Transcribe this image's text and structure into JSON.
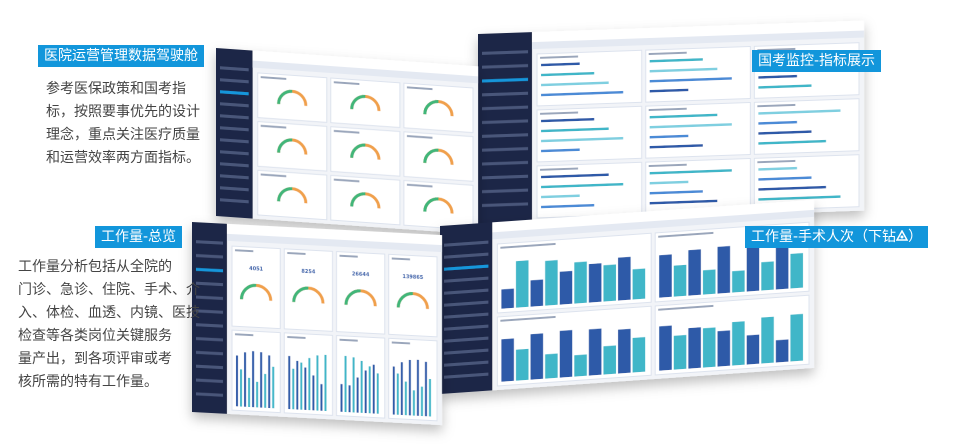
{
  "callouts": [
    {
      "text": "医院运营管理数据驾驶舱"
    },
    {
      "text": "工作量-总览"
    },
    {
      "text": "国考监控-指标展示"
    },
    {
      "parts": [
        "工作量-手术人次（下钻",
        "）"
      ]
    }
  ],
  "paragraphs": [
    [
      "参考医保政策和国考指",
      "标，按照要事优先的设计",
      "理念，重点关注医疗质量",
      "和运营效率两方面指标。"
    ],
    [
      "工作量分析包括从全院的",
      "门诊、急诊、住院、手术、介",
      "入、体检、血透、内镜、医技",
      "检查等各类岗位关键服务",
      "量产出，到各项评审或考",
      "核所需的特有工作量。"
    ]
  ],
  "overview_kpis": [
    "4051",
    "8254",
    "26644",
    "139865"
  ]
}
